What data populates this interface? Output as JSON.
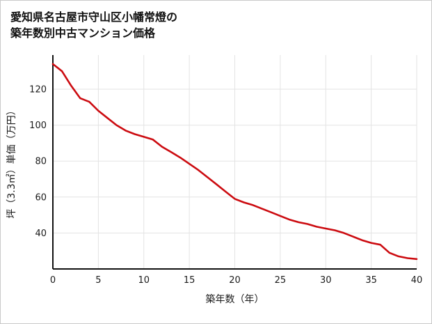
{
  "page": {
    "kind": "real-estate price line chart"
  },
  "chart_data": {
    "type": "line",
    "title": "愛知県名古屋市守山区小幡常燈の築年数別中古マンション価格",
    "title_lines": [
      "愛知県名古屋市守山区小幡常燈の",
      "築年数別中古マンション価格"
    ],
    "xlabel": "築年数（年）",
    "ylabel": "坪（3.3㎡）単価（万円）",
    "x": [
      0,
      1,
      2,
      3,
      4,
      5,
      6,
      7,
      8,
      9,
      10,
      11,
      12,
      13,
      14,
      15,
      16,
      17,
      18,
      19,
      20,
      21,
      22,
      23,
      24,
      25,
      26,
      27,
      28,
      29,
      30,
      31,
      32,
      33,
      34,
      35,
      36,
      37,
      38,
      39,
      40
    ],
    "values": [
      134,
      130,
      122,
      115,
      113,
      108,
      104,
      100,
      97,
      95,
      93.5,
      92,
      88,
      85,
      82,
      78.5,
      75,
      71,
      67,
      63,
      59,
      57,
      55.5,
      53.5,
      51.5,
      49.5,
      47.5,
      46,
      45,
      43.5,
      42.5,
      41.5,
      40,
      38,
      36,
      34.5,
      33.5,
      29,
      27,
      26,
      25.5
    ],
    "xlim": [
      0,
      40
    ],
    "ylim": [
      20,
      139
    ],
    "xticks": [
      0,
      5,
      10,
      15,
      20,
      25,
      30,
      35,
      40
    ],
    "yticks": [
      40,
      60,
      80,
      100,
      120
    ],
    "grid": true,
    "legend": "none",
    "colors": {
      "line": "#cc0b10",
      "grid": "#e3e3e3",
      "axis": "#111111",
      "text": "#1a1a1a",
      "background": "#ffffff",
      "border": "#c9c9c9"
    }
  }
}
